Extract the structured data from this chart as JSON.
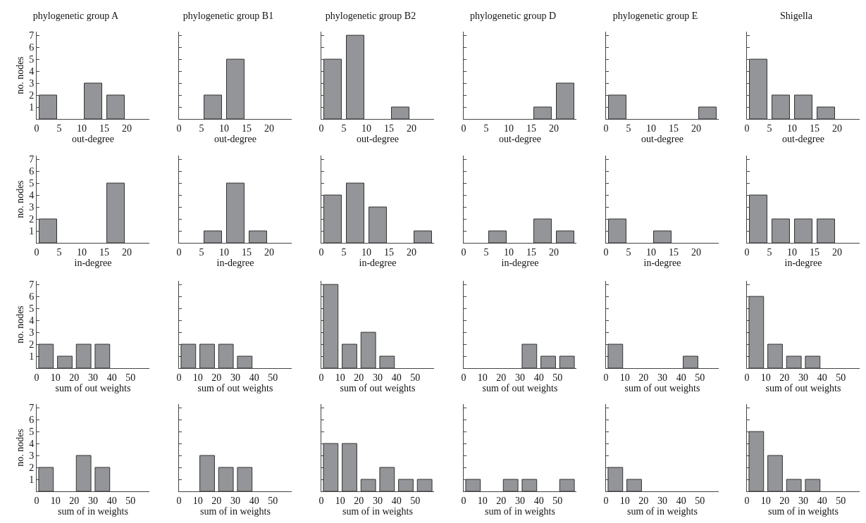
{
  "chart_data": [
    {
      "type": "histogram",
      "title": "phylogenetic group A",
      "xlabel": "out-degree",
      "ylabel": "no. nodes",
      "bins": [
        0,
        5,
        10,
        15,
        20,
        25
      ],
      "values": [
        2,
        0,
        3,
        2,
        0
      ],
      "color": "#939598",
      "xlim": [
        0,
        25
      ],
      "xticks": [
        0,
        5,
        10,
        15,
        20
      ],
      "ylim": [
        0,
        7.3
      ],
      "yticks": [
        1,
        2,
        3,
        4,
        5,
        6,
        7
      ]
    },
    {
      "type": "histogram",
      "title": "phylogenetic group B1",
      "xlabel": "out-degree",
      "bins": [
        0,
        5,
        10,
        15,
        20,
        25
      ],
      "values": [
        0,
        2,
        5,
        0,
        0
      ],
      "color": "#939598",
      "xlim": [
        0,
        25
      ],
      "xticks": [
        0,
        5,
        10,
        15,
        20
      ],
      "ylim": [
        0,
        7.3
      ],
      "yticks": [
        1,
        2,
        3,
        4,
        5,
        6,
        7
      ],
      "tick_labels": "x"
    },
    {
      "type": "histogram",
      "title": "phylogenetic group B2",
      "xlabel": "out-degree",
      "bins": [
        0,
        5,
        10,
        15,
        20,
        25
      ],
      "values": [
        5,
        7,
        0,
        1,
        0
      ],
      "color": "#939598",
      "xlim": [
        0,
        25
      ],
      "xticks": [
        0,
        5,
        10,
        15,
        20
      ],
      "ylim": [
        0,
        7.3
      ],
      "yticks": [
        1,
        2,
        3,
        4,
        5,
        6,
        7
      ],
      "tick_labels": "x"
    },
    {
      "type": "histogram",
      "title": "phylogenetic group D",
      "xlabel": "out-degree",
      "bins": [
        0,
        5,
        10,
        15,
        20,
        25
      ],
      "values": [
        0,
        0,
        0,
        1,
        3
      ],
      "color": "#939598",
      "xlim": [
        0,
        25
      ],
      "xticks": [
        0,
        5,
        10,
        15,
        20
      ],
      "ylim": [
        0,
        7.3
      ],
      "yticks": [
        1,
        2,
        3,
        4,
        5,
        6,
        7
      ],
      "tick_labels": "x"
    },
    {
      "type": "histogram",
      "title": "phylogenetic group E",
      "xlabel": "out-degree",
      "bins": [
        0,
        5,
        10,
        15,
        20,
        25
      ],
      "values": [
        2,
        0,
        0,
        0,
        1
      ],
      "color": "#939598",
      "xlim": [
        0,
        25
      ],
      "xticks": [
        0,
        5,
        10,
        15,
        20
      ],
      "ylim": [
        0,
        7.3
      ],
      "yticks": [
        1,
        2,
        3,
        4,
        5,
        6,
        7
      ],
      "tick_labels": "x"
    },
    {
      "type": "histogram",
      "title": "Shigella",
      "xlabel": "out-degree",
      "bins": [
        0,
        5,
        10,
        15,
        20,
        25
      ],
      "values": [
        5,
        2,
        2,
        1,
        0
      ],
      "color": "#939598",
      "xlim": [
        0,
        25
      ],
      "xticks": [
        0,
        5,
        10,
        15,
        20
      ],
      "ylim": [
        0,
        7.3
      ],
      "yticks": [
        1,
        2,
        3,
        4,
        5,
        6,
        7
      ],
      "tick_labels": "x"
    },
    {
      "type": "histogram",
      "xlabel": "in-degree",
      "ylabel": "no. nodes",
      "bins": [
        0,
        5,
        10,
        15,
        20,
        25
      ],
      "values": [
        2,
        0,
        0,
        5,
        0
      ],
      "color": "#939598",
      "xlim": [
        0,
        25
      ],
      "xticks": [
        0,
        5,
        10,
        15,
        20
      ],
      "ylim": [
        0,
        7.3
      ],
      "yticks": [
        1,
        2,
        3,
        4,
        5,
        6,
        7
      ]
    },
    {
      "type": "histogram",
      "xlabel": "in-degree",
      "bins": [
        0,
        5,
        10,
        15,
        20,
        25
      ],
      "values": [
        0,
        1,
        5,
        1,
        0
      ],
      "color": "#939598",
      "xlim": [
        0,
        25
      ],
      "xticks": [
        0,
        5,
        10,
        15,
        20
      ],
      "ylim": [
        0,
        7.3
      ],
      "yticks": [
        1,
        2,
        3,
        4,
        5,
        6,
        7
      ],
      "tick_labels": "x"
    },
    {
      "type": "histogram",
      "xlabel": "in-degree",
      "bins": [
        0,
        5,
        10,
        15,
        20,
        25
      ],
      "values": [
        4,
        5,
        3,
        0,
        1
      ],
      "color": "#939598",
      "xlim": [
        0,
        25
      ],
      "xticks": [
        0,
        5,
        10,
        15,
        20
      ],
      "ylim": [
        0,
        7.3
      ],
      "yticks": [
        1,
        2,
        3,
        4,
        5,
        6,
        7
      ],
      "tick_labels": "x"
    },
    {
      "type": "histogram",
      "xlabel": "in-degree",
      "bins": [
        0,
        5,
        10,
        15,
        20,
        25
      ],
      "values": [
        0,
        1,
        0,
        2,
        1
      ],
      "color": "#939598",
      "xlim": [
        0,
        25
      ],
      "xticks": [
        0,
        5,
        10,
        15,
        20
      ],
      "ylim": [
        0,
        7.3
      ],
      "yticks": [
        1,
        2,
        3,
        4,
        5,
        6,
        7
      ],
      "tick_labels": "x"
    },
    {
      "type": "histogram",
      "xlabel": "in-degree",
      "bins": [
        0,
        5,
        10,
        15,
        20,
        25
      ],
      "values": [
        2,
        0,
        1,
        0,
        0
      ],
      "color": "#939598",
      "xlim": [
        0,
        25
      ],
      "xticks": [
        0,
        5,
        10,
        15,
        20
      ],
      "ylim": [
        0,
        7.3
      ],
      "yticks": [
        1,
        2,
        3,
        4,
        5,
        6,
        7
      ],
      "tick_labels": "x"
    },
    {
      "type": "histogram",
      "xlabel": "in-degree",
      "bins": [
        0,
        5,
        10,
        15,
        20,
        25
      ],
      "values": [
        4,
        2,
        2,
        2,
        0
      ],
      "color": "#939598",
      "xlim": [
        0,
        25
      ],
      "xticks": [
        0,
        5,
        10,
        15,
        20
      ],
      "ylim": [
        0,
        7.3
      ],
      "yticks": [
        1,
        2,
        3,
        4,
        5,
        6,
        7
      ],
      "tick_labels": "x"
    },
    {
      "type": "histogram",
      "xlabel": "sum of out weights",
      "ylabel": "no. nodes",
      "bins": [
        0,
        10,
        20,
        30,
        40,
        50,
        60
      ],
      "values": [
        2,
        1,
        2,
        2,
        0,
        0
      ],
      "color": "#939598",
      "xlim": [
        0,
        60
      ],
      "xticks": [
        0,
        10,
        20,
        30,
        40,
        50
      ],
      "ylim": [
        0,
        7.3
      ],
      "yticks": [
        1,
        2,
        3,
        4,
        5,
        6,
        7
      ]
    },
    {
      "type": "histogram",
      "xlabel": "sum of out weights",
      "bins": [
        0,
        10,
        20,
        30,
        40,
        50,
        60
      ],
      "values": [
        2,
        2,
        2,
        1,
        0,
        0
      ],
      "color": "#939598",
      "xlim": [
        0,
        60
      ],
      "xticks": [
        0,
        10,
        20,
        30,
        40,
        50
      ],
      "ylim": [
        0,
        7.3
      ],
      "yticks": [
        1,
        2,
        3,
        4,
        5,
        6,
        7
      ],
      "tick_labels": "x"
    },
    {
      "type": "histogram",
      "xlabel": "sum of out weights",
      "bins": [
        0,
        10,
        20,
        30,
        40,
        50,
        60
      ],
      "values": [
        7,
        2,
        3,
        1,
        0,
        0
      ],
      "color": "#939598",
      "xlim": [
        0,
        60
      ],
      "xticks": [
        0,
        10,
        20,
        30,
        40,
        50
      ],
      "ylim": [
        0,
        7.3
      ],
      "yticks": [
        1,
        2,
        3,
        4,
        5,
        6,
        7
      ],
      "tick_labels": "x"
    },
    {
      "type": "histogram",
      "xlabel": "sum of out weights",
      "bins": [
        0,
        10,
        20,
        30,
        40,
        50,
        60
      ],
      "values": [
        0,
        0,
        0,
        2,
        1,
        1
      ],
      "color": "#939598",
      "xlim": [
        0,
        60
      ],
      "xticks": [
        0,
        10,
        20,
        30,
        40,
        50
      ],
      "ylim": [
        0,
        7.3
      ],
      "yticks": [
        1,
        2,
        3,
        4,
        5,
        6,
        7
      ],
      "tick_labels": "x"
    },
    {
      "type": "histogram",
      "xlabel": "sum of out weights",
      "bins": [
        0,
        10,
        20,
        30,
        40,
        50,
        60
      ],
      "values": [
        2,
        0,
        0,
        0,
        1,
        0
      ],
      "color": "#939598",
      "xlim": [
        0,
        60
      ],
      "xticks": [
        0,
        10,
        20,
        30,
        40,
        50
      ],
      "ylim": [
        0,
        7.3
      ],
      "yticks": [
        1,
        2,
        3,
        4,
        5,
        6,
        7
      ],
      "tick_labels": "x"
    },
    {
      "type": "histogram",
      "xlabel": "sum of out weights",
      "bins": [
        0,
        10,
        20,
        30,
        40,
        50,
        60
      ],
      "values": [
        6,
        2,
        1,
        1,
        0,
        0
      ],
      "color": "#939598",
      "xlim": [
        0,
        60
      ],
      "xticks": [
        0,
        10,
        20,
        30,
        40,
        50
      ],
      "ylim": [
        0,
        7.3
      ],
      "yticks": [
        1,
        2,
        3,
        4,
        5,
        6,
        7
      ],
      "tick_labels": "x"
    },
    {
      "type": "histogram",
      "xlabel": "sum of in weights",
      "ylabel": "no. nodes",
      "bins": [
        0,
        10,
        20,
        30,
        40,
        50,
        60
      ],
      "values": [
        2,
        0,
        3,
        2,
        0,
        0
      ],
      "color": "#939598",
      "xlim": [
        0,
        60
      ],
      "xticks": [
        0,
        10,
        20,
        30,
        40,
        50
      ],
      "ylim": [
        0,
        7.3
      ],
      "yticks": [
        1,
        2,
        3,
        4,
        5,
        6,
        7
      ]
    },
    {
      "type": "histogram",
      "xlabel": "sum of in weights",
      "bins": [
        0,
        10,
        20,
        30,
        40,
        50,
        60
      ],
      "values": [
        0,
        3,
        2,
        2,
        0,
        0
      ],
      "color": "#939598",
      "xlim": [
        0,
        60
      ],
      "xticks": [
        0,
        10,
        20,
        30,
        40,
        50
      ],
      "ylim": [
        0,
        7.3
      ],
      "yticks": [
        1,
        2,
        3,
        4,
        5,
        6,
        7
      ],
      "tick_labels": "x"
    },
    {
      "type": "histogram",
      "xlabel": "sum of in weights",
      "bins": [
        0,
        10,
        20,
        30,
        40,
        50,
        60
      ],
      "values": [
        4,
        4,
        1,
        2,
        1,
        1
      ],
      "color": "#939598",
      "xlim": [
        0,
        60
      ],
      "xticks": [
        0,
        10,
        20,
        30,
        40,
        50
      ],
      "ylim": [
        0,
        7.3
      ],
      "yticks": [
        1,
        2,
        3,
        4,
        5,
        6,
        7
      ],
      "tick_labels": "x"
    },
    {
      "type": "histogram",
      "xlabel": "sum of in weights",
      "bins": [
        0,
        10,
        20,
        30,
        40,
        50,
        60
      ],
      "values": [
        1,
        0,
        1,
        1,
        0,
        1
      ],
      "color": "#939598",
      "xlim": [
        0,
        60
      ],
      "xticks": [
        0,
        10,
        20,
        30,
        40,
        50
      ],
      "ylim": [
        0,
        7.3
      ],
      "yticks": [
        1,
        2,
        3,
        4,
        5,
        6,
        7
      ],
      "tick_labels": "x"
    },
    {
      "type": "histogram",
      "xlabel": "sum of in weights",
      "bins": [
        0,
        10,
        20,
        30,
        40,
        50,
        60
      ],
      "values": [
        2,
        1,
        0,
        0,
        0,
        0
      ],
      "color": "#939598",
      "xlim": [
        0,
        60
      ],
      "xticks": [
        0,
        10,
        20,
        30,
        40,
        50
      ],
      "ylim": [
        0,
        7.3
      ],
      "yticks": [
        1,
        2,
        3,
        4,
        5,
        6,
        7
      ],
      "tick_labels": "x"
    },
    {
      "type": "histogram",
      "xlabel": "sum of in weights",
      "bins": [
        0,
        10,
        20,
        30,
        40,
        50,
        60
      ],
      "values": [
        5,
        3,
        1,
        1,
        0,
        0
      ],
      "color": "#939598",
      "xlim": [
        0,
        60
      ],
      "xticks": [
        0,
        10,
        20,
        30,
        40,
        50
      ],
      "ylim": [
        0,
        7.3
      ],
      "yticks": [
        1,
        2,
        3,
        4,
        5,
        6,
        7
      ],
      "tick_labels": "x"
    }
  ]
}
